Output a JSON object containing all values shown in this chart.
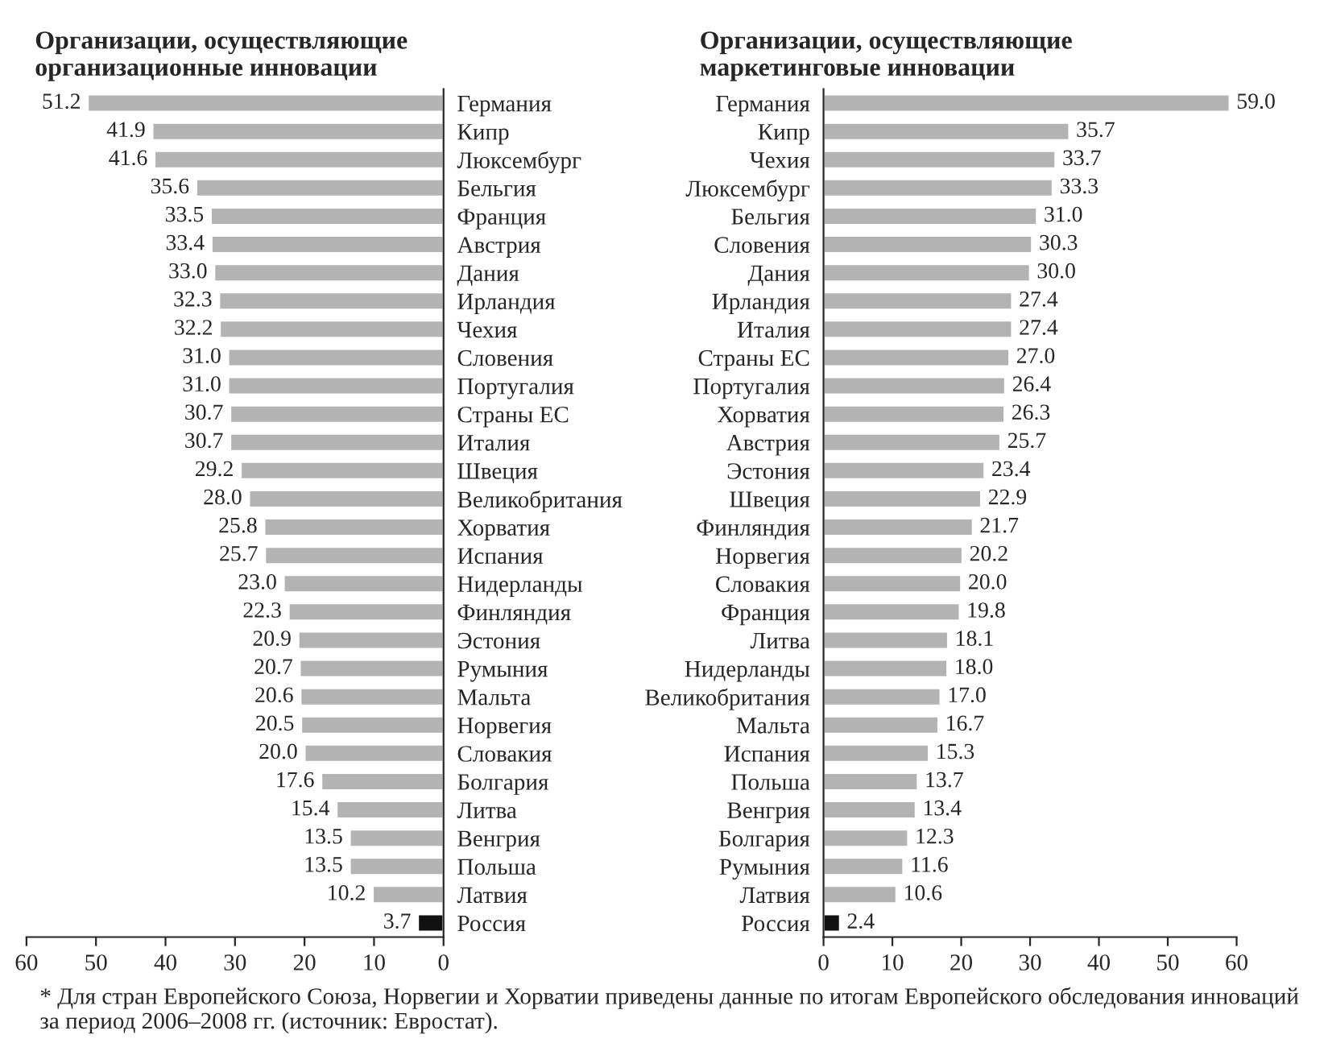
{
  "chart_data": [
    {
      "type": "bar",
      "orientation": "horizontal",
      "title": "Организации, осуществляющие\nорганизационные инновации",
      "categories": [
        "Германия",
        "Кипр",
        "Люксембург",
        "Бельгия",
        "Франция",
        "Австрия",
        "Дания",
        "Ирландия",
        "Чехия",
        "Словения",
        "Португалия",
        "Страны ЕС",
        "Италия",
        "Швеция",
        "Великобритания",
        "Хорватия",
        "Испания",
        "Нидерланды",
        "Финляндия",
        "Эстония",
        "Румыния",
        "Мальта",
        "Норвегия",
        "Словакия",
        "Болгария",
        "Литва",
        "Венгрия",
        "Польша",
        "Латвия",
        "Россия"
      ],
      "values": [
        51.2,
        41.9,
        41.6,
        35.6,
        33.5,
        33.4,
        33.0,
        32.3,
        32.2,
        31.0,
        31.0,
        30.7,
        30.7,
        29.2,
        28.0,
        25.8,
        25.7,
        23.0,
        22.3,
        20.9,
        20.7,
        20.6,
        20.5,
        20.0,
        17.6,
        15.4,
        13.5,
        13.5,
        10.2,
        3.7
      ],
      "colors": [
        "#b3b3b3",
        "#b3b3b3",
        "#b3b3b3",
        "#b3b3b3",
        "#b3b3b3",
        "#b3b3b3",
        "#b3b3b3",
        "#b3b3b3",
        "#b3b3b3",
        "#b3b3b3",
        "#b3b3b3",
        "#b3b3b3",
        "#b3b3b3",
        "#b3b3b3",
        "#b3b3b3",
        "#b3b3b3",
        "#b3b3b3",
        "#b3b3b3",
        "#b3b3b3",
        "#b3b3b3",
        "#b3b3b3",
        "#b3b3b3",
        "#b3b3b3",
        "#b3b3b3",
        "#b3b3b3",
        "#b3b3b3",
        "#b3b3b3",
        "#b3b3b3",
        "#b3b3b3",
        "#111111"
      ],
      "xlim": [
        60,
        0
      ],
      "xticks": [
        60,
        50,
        40,
        30,
        20,
        10,
        0
      ],
      "grid": false,
      "value_labels": [
        "51.2",
        "41.9",
        "41.6",
        "35.6",
        "33.5",
        "33.4",
        "33.0",
        "32.3",
        "32.2",
        "31.0",
        "31.0",
        "30.7",
        "30.7",
        "29.2",
        "28.0",
        "25.8",
        "25.7",
        "23.0",
        "22.3",
        "20.9",
        "20.7",
        "20.6",
        "20.5",
        "20.0",
        "17.6",
        "15.4",
        "13.5",
        "13.5",
        "10.2",
        "3.7"
      ],
      "annotations": [
        "* Для стран Европейского Союза, Норвегии и Хорватии приведены данные по итогам Европейского обследования инноваций за период 2006–2008 гг. (источник: Евростат)."
      ]
    },
    {
      "type": "bar",
      "orientation": "horizontal",
      "title": "Организации, осуществляющие\nмаркетинговые инновации",
      "categories": [
        "Германия",
        "Кипр",
        "Чехия",
        "Люксембург",
        "Бельгия",
        "Словения",
        "Дания",
        "Ирландия",
        "Италия",
        "Страны ЕС",
        "Португалия",
        "Хорватия",
        "Австрия",
        "Эстония",
        "Швеция",
        "Финляндия",
        "Норвегия",
        "Словакия",
        "Франция",
        "Литва",
        "Нидерланды",
        "Великобритания",
        "Мальта",
        "Испания",
        "Польша",
        "Венгрия",
        "Болгария",
        "Румыния",
        "Латвия",
        "Россия"
      ],
      "values": [
        59.0,
        35.7,
        33.7,
        33.3,
        31.0,
        30.3,
        30.0,
        27.4,
        27.4,
        27.0,
        26.4,
        26.3,
        25.7,
        23.4,
        22.9,
        21.7,
        20.2,
        20.0,
        19.8,
        18.1,
        18.0,
        17.0,
        16.7,
        15.3,
        13.7,
        13.4,
        12.3,
        11.6,
        10.6,
        2.4
      ],
      "colors": [
        "#b3b3b3",
        "#b3b3b3",
        "#b3b3b3",
        "#b3b3b3",
        "#b3b3b3",
        "#b3b3b3",
        "#b3b3b3",
        "#b3b3b3",
        "#b3b3b3",
        "#b3b3b3",
        "#b3b3b3",
        "#b3b3b3",
        "#b3b3b3",
        "#b3b3b3",
        "#b3b3b3",
        "#b3b3b3",
        "#b3b3b3",
        "#b3b3b3",
        "#b3b3b3",
        "#b3b3b3",
        "#b3b3b3",
        "#b3b3b3",
        "#b3b3b3",
        "#b3b3b3",
        "#b3b3b3",
        "#b3b3b3",
        "#b3b3b3",
        "#b3b3b3",
        "#b3b3b3",
        "#111111"
      ],
      "xlim": [
        0,
        60
      ],
      "xticks": [
        0,
        10,
        20,
        30,
        40,
        50,
        60
      ],
      "grid": false,
      "value_labels": [
        "59.0",
        "35.7",
        "33.7",
        "33.3",
        "31.0",
        "30.3",
        "30.0",
        "27.4",
        "27.4",
        "27.0",
        "26.4",
        "26.3",
        "25.7",
        "23.4",
        "22.9",
        "21.7",
        "20.2",
        "20.0",
        "19.8",
        "18.1",
        "18.0",
        "17.0",
        "16.7",
        "15.3",
        "13.7",
        "13.4",
        "12.3",
        "11.6",
        "10.6",
        "2.4"
      ]
    }
  ]
}
